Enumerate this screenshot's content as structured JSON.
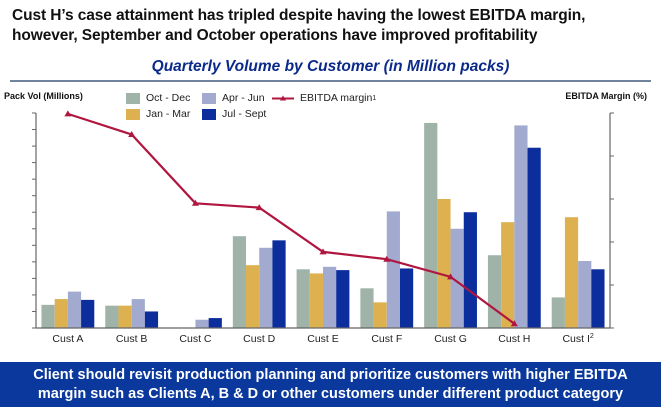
{
  "headline": {
    "line1": "Cust H’s case attainment has tripled despite having the lowest EBITDA margin,",
    "line2": "however, September and October operations have improved profitability"
  },
  "banner": {
    "line1": "Client should revisit production planning and prioritize customers with higher EBITDA",
    "line2": "margin such as Clients A, B & D or other customers under different product category"
  },
  "chart_data": {
    "type": "bar",
    "title": "Quarterly Volume by Customer (in Million packs)",
    "ylabel": "Pack Vol (Millions)",
    "y2label": "EBITDA Margin (%)",
    "xlabel": "",
    "categories": [
      "Cust A",
      "Cust B",
      "Cust C",
      "Cust D",
      "Cust E",
      "Cust F",
      "Cust G",
      "Cust H",
      "Cust I"
    ],
    "category_superscripts": [
      "",
      "",
      "",
      "",
      "",
      "",
      "",
      "",
      "2"
    ],
    "ylim": [
      0,
      13
    ],
    "y2lim": [
      0,
      5
    ],
    "y_tick_count": 13,
    "y2_tick_count": 5,
    "grid": false,
    "legend_position": "top-center",
    "series": [
      {
        "name": "Oct - Dec",
        "kind": "bar",
        "color": "#9fb3a8",
        "values": [
          1.4,
          1.35,
          0,
          5.55,
          3.55,
          2.4,
          12.4,
          4.4,
          1.85
        ]
      },
      {
        "name": "Jan - Mar",
        "kind": "bar",
        "color": "#ddb14f",
        "values": [
          1.75,
          1.35,
          0,
          3.8,
          3.3,
          1.55,
          7.8,
          6.4,
          6.7
        ]
      },
      {
        "name": "Apr - Jun",
        "kind": "bar",
        "color": "#a2abcf",
        "values": [
          2.2,
          1.75,
          0.5,
          4.85,
          3.7,
          7.05,
          6.0,
          12.25,
          4.05
        ]
      },
      {
        "name": "Jul - Sept",
        "kind": "bar",
        "color": "#0b2e9c",
        "values": [
          1.7,
          1.0,
          0.6,
          5.3,
          3.5,
          3.6,
          7.0,
          10.9,
          3.55
        ]
      },
      {
        "name": "EBITDA margin",
        "superscript": "1",
        "kind": "line",
        "axis": "right",
        "color": "#b0163f",
        "values": [
          4.98,
          4.5,
          2.9,
          2.8,
          1.77,
          1.6,
          1.19,
          0.1,
          null
        ]
      }
    ]
  }
}
